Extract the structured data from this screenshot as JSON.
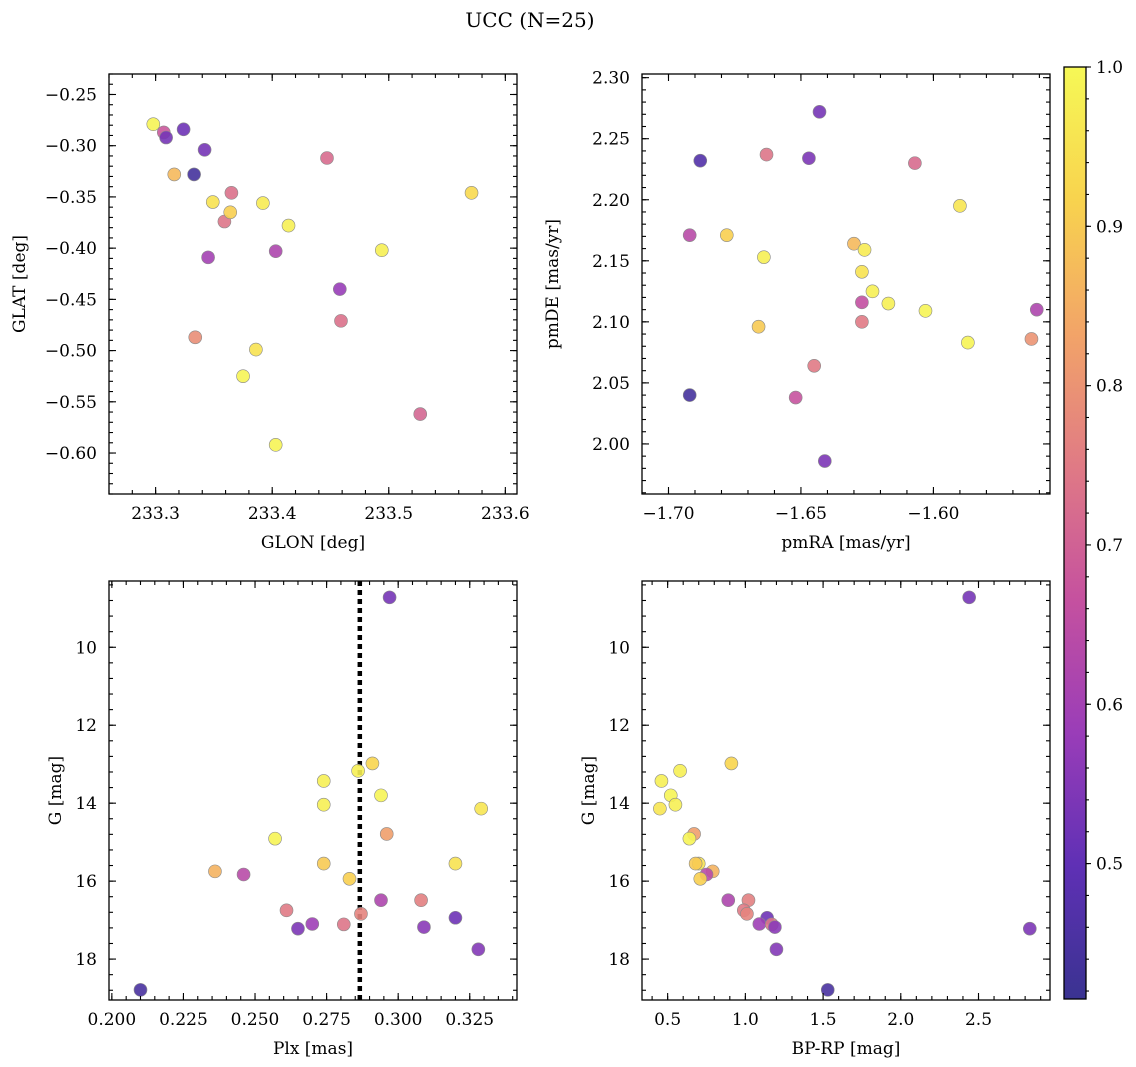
{
  "title": "UCC (N=25)",
  "colormap": {
    "name": "plasma",
    "stops": [
      "#3a3391",
      "#5f30b5",
      "#9a3db8",
      "#c5519f",
      "#e07a85",
      "#f2a468",
      "#f8d34e",
      "#f6f856"
    ],
    "vmin": 0.415,
    "vmax": 1.0,
    "ticks": [
      0.5,
      0.6,
      0.7,
      0.8,
      0.9,
      1.0
    ],
    "tick_labels": [
      "0.5",
      "0.6",
      "0.7",
      "0.8",
      "0.9",
      "1.0"
    ]
  },
  "chart_data": [
    {
      "type": "scatter",
      "xlabel": "GLON [deg]",
      "ylabel": "GLAT [deg]",
      "xlim": [
        233.26,
        233.61
      ],
      "ylim": [
        -0.64,
        -0.23
      ],
      "xticks": [
        233.3,
        233.4,
        233.5,
        233.6
      ],
      "xtick_labels": [
        "233.3",
        "233.4",
        "233.5",
        "233.6"
      ],
      "yticks": [
        -0.25,
        -0.3,
        -0.35,
        -0.4,
        -0.45,
        -0.5,
        -0.55,
        -0.6
      ],
      "ytick_labels": [
        "−0.25",
        "−0.30",
        "−0.35",
        "−0.40",
        "−0.45",
        "−0.50",
        "−0.55",
        "−0.60"
      ],
      "points": [
        {
          "x": 233.298,
          "y": -0.279,
          "c": 0.99
        },
        {
          "x": 233.307,
          "y": -0.287,
          "c": 0.68
        },
        {
          "x": 233.309,
          "y": -0.292,
          "c": 0.53
        },
        {
          "x": 233.324,
          "y": -0.284,
          "c": 0.52
        },
        {
          "x": 233.316,
          "y": -0.328,
          "c": 0.87
        },
        {
          "x": 233.333,
          "y": -0.328,
          "c": 0.44
        },
        {
          "x": 233.342,
          "y": -0.304,
          "c": 0.53
        },
        {
          "x": 233.349,
          "y": -0.355,
          "c": 0.95
        },
        {
          "x": 233.359,
          "y": -0.374,
          "c": 0.74
        },
        {
          "x": 233.365,
          "y": -0.346,
          "c": 0.73
        },
        {
          "x": 233.364,
          "y": -0.365,
          "c": 0.91
        },
        {
          "x": 233.392,
          "y": -0.356,
          "c": 0.97
        },
        {
          "x": 233.414,
          "y": -0.378,
          "c": 0.98
        },
        {
          "x": 233.345,
          "y": -0.409,
          "c": 0.6
        },
        {
          "x": 233.403,
          "y": -0.403,
          "c": 0.62
        },
        {
          "x": 233.447,
          "y": -0.312,
          "c": 0.72
        },
        {
          "x": 233.458,
          "y": -0.44,
          "c": 0.58
        },
        {
          "x": 233.459,
          "y": -0.471,
          "c": 0.73
        },
        {
          "x": 233.494,
          "y": -0.402,
          "c": 0.98
        },
        {
          "x": 233.571,
          "y": -0.346,
          "c": 0.93
        },
        {
          "x": 233.334,
          "y": -0.487,
          "c": 0.79
        },
        {
          "x": 233.386,
          "y": -0.499,
          "c": 0.95
        },
        {
          "x": 233.375,
          "y": -0.525,
          "c": 0.99
        },
        {
          "x": 233.527,
          "y": -0.562,
          "c": 0.71
        },
        {
          "x": 233.403,
          "y": -0.592,
          "c": 0.99
        }
      ]
    },
    {
      "type": "scatter",
      "xlabel": "pmRA [mas/yr]",
      "ylabel": "pmDE [mas/yr]",
      "xlim": [
        -1.71,
        -1.556
      ],
      "ylim": [
        1.959,
        2.303
      ],
      "xticks": [
        -1.7,
        -1.65,
        -1.6
      ],
      "xtick_labels": [
        "−1.70",
        "−1.65",
        "−1.60"
      ],
      "yticks": [
        2.0,
        2.05,
        2.1,
        2.15,
        2.2,
        2.25,
        2.3
      ],
      "ytick_labels": [
        "2.00",
        "2.05",
        "2.10",
        "2.15",
        "2.20",
        "2.25",
        "2.30"
      ],
      "points": [
        {
          "x": -1.643,
          "y": 2.272,
          "c": 0.53
        },
        {
          "x": -1.688,
          "y": 2.232,
          "c": 0.47
        },
        {
          "x": -1.663,
          "y": 2.237,
          "c": 0.74
        },
        {
          "x": -1.647,
          "y": 2.234,
          "c": 0.54
        },
        {
          "x": -1.607,
          "y": 2.23,
          "c": 0.72
        },
        {
          "x": -1.59,
          "y": 2.195,
          "c": 0.96
        },
        {
          "x": -1.692,
          "y": 2.171,
          "c": 0.64
        },
        {
          "x": -1.678,
          "y": 2.171,
          "c": 0.91
        },
        {
          "x": -1.664,
          "y": 2.153,
          "c": 0.98
        },
        {
          "x": -1.63,
          "y": 2.164,
          "c": 0.87
        },
        {
          "x": -1.626,
          "y": 2.159,
          "c": 0.97
        },
        {
          "x": -1.627,
          "y": 2.141,
          "c": 0.95
        },
        {
          "x": -1.623,
          "y": 2.125,
          "c": 0.98
        },
        {
          "x": -1.627,
          "y": 2.116,
          "c": 0.66
        },
        {
          "x": -1.617,
          "y": 2.115,
          "c": 0.98
        },
        {
          "x": -1.603,
          "y": 2.109,
          "c": 0.99
        },
        {
          "x": -1.561,
          "y": 2.11,
          "c": 0.62
        },
        {
          "x": -1.666,
          "y": 2.096,
          "c": 0.9
        },
        {
          "x": -1.627,
          "y": 2.1,
          "c": 0.75
        },
        {
          "x": -1.587,
          "y": 2.083,
          "c": 0.99
        },
        {
          "x": -1.563,
          "y": 2.086,
          "c": 0.8
        },
        {
          "x": -1.645,
          "y": 2.064,
          "c": 0.75
        },
        {
          "x": -1.692,
          "y": 2.04,
          "c": 0.44
        },
        {
          "x": -1.652,
          "y": 2.038,
          "c": 0.67
        },
        {
          "x": -1.641,
          "y": 1.986,
          "c": 0.54
        }
      ]
    },
    {
      "type": "scatter",
      "xlabel": "Plx [mas]",
      "ylabel": "G [mag]",
      "xlim": [
        0.199,
        0.3415
      ],
      "ylim": [
        19.05,
        8.3
      ],
      "y_inverted": true,
      "xticks": [
        0.2,
        0.225,
        0.25,
        0.275,
        0.3,
        0.325
      ],
      "xtick_labels": [
        "0.200",
        "0.225",
        "0.250",
        "0.275",
        "0.300",
        "0.325"
      ],
      "yticks": [
        10,
        12,
        14,
        16,
        18
      ],
      "ytick_labels": [
        "10",
        "12",
        "14",
        "16",
        "18"
      ],
      "vline": 0.2866,
      "points": [
        {
          "x": 0.297,
          "y": 8.72,
          "c": 0.53
        },
        {
          "x": 0.286,
          "y": 13.17,
          "c": 0.98
        },
        {
          "x": 0.291,
          "y": 12.98,
          "c": 0.92
        },
        {
          "x": 0.274,
          "y": 13.43,
          "c": 0.98
        },
        {
          "x": 0.294,
          "y": 13.8,
          "c": 0.99
        },
        {
          "x": 0.274,
          "y": 14.04,
          "c": 0.98
        },
        {
          "x": 0.329,
          "y": 14.14,
          "c": 0.96
        },
        {
          "x": 0.296,
          "y": 14.79,
          "c": 0.82
        },
        {
          "x": 0.257,
          "y": 14.91,
          "c": 0.99
        },
        {
          "x": 0.32,
          "y": 15.55,
          "c": 0.95
        },
        {
          "x": 0.274,
          "y": 15.55,
          "c": 0.9
        },
        {
          "x": 0.236,
          "y": 15.75,
          "c": 0.86
        },
        {
          "x": 0.246,
          "y": 15.83,
          "c": 0.64
        },
        {
          "x": 0.283,
          "y": 15.94,
          "c": 0.91
        },
        {
          "x": 0.294,
          "y": 16.49,
          "c": 0.62
        },
        {
          "x": 0.308,
          "y": 16.49,
          "c": 0.76
        },
        {
          "x": 0.261,
          "y": 16.75,
          "c": 0.75
        },
        {
          "x": 0.287,
          "y": 16.84,
          "c": 0.77
        },
        {
          "x": 0.32,
          "y": 16.94,
          "c": 0.52
        },
        {
          "x": 0.27,
          "y": 17.1,
          "c": 0.59
        },
        {
          "x": 0.281,
          "y": 17.11,
          "c": 0.74
        },
        {
          "x": 0.309,
          "y": 17.18,
          "c": 0.56
        },
        {
          "x": 0.265,
          "y": 17.22,
          "c": 0.54
        },
        {
          "x": 0.328,
          "y": 17.75,
          "c": 0.55
        },
        {
          "x": 0.21,
          "y": 18.79,
          "c": 0.45
        }
      ]
    },
    {
      "type": "scatter",
      "xlabel": "BP-RP [mag]",
      "ylabel": "G [mag]",
      "xlim": [
        0.335,
        2.96
      ],
      "ylim": [
        19.05,
        8.3
      ],
      "y_inverted": true,
      "xticks": [
        0.5,
        1.0,
        1.5,
        2.0,
        2.5
      ],
      "xtick_labels": [
        "0.5",
        "1.0",
        "1.5",
        "2.0",
        "2.5"
      ],
      "yticks": [
        10,
        12,
        14,
        16,
        18
      ],
      "ytick_labels": [
        "10",
        "12",
        "14",
        "16",
        "18"
      ],
      "points": [
        {
          "x": 2.44,
          "y": 8.72,
          "c": 0.53
        },
        {
          "x": 0.58,
          "y": 13.17,
          "c": 0.98
        },
        {
          "x": 0.91,
          "y": 12.98,
          "c": 0.92
        },
        {
          "x": 0.46,
          "y": 13.43,
          "c": 0.98
        },
        {
          "x": 0.52,
          "y": 13.8,
          "c": 0.99
        },
        {
          "x": 0.55,
          "y": 14.04,
          "c": 0.98
        },
        {
          "x": 0.45,
          "y": 14.14,
          "c": 0.96
        },
        {
          "x": 0.67,
          "y": 14.79,
          "c": 0.82
        },
        {
          "x": 0.64,
          "y": 14.91,
          "c": 0.99
        },
        {
          "x": 0.7,
          "y": 15.55,
          "c": 0.95
        },
        {
          "x": 0.68,
          "y": 15.55,
          "c": 0.9
        },
        {
          "x": 0.79,
          "y": 15.75,
          "c": 0.86
        },
        {
          "x": 0.75,
          "y": 15.83,
          "c": 0.64
        },
        {
          "x": 0.71,
          "y": 15.94,
          "c": 0.91
        },
        {
          "x": 0.89,
          "y": 16.49,
          "c": 0.62
        },
        {
          "x": 1.02,
          "y": 16.49,
          "c": 0.76
        },
        {
          "x": 0.99,
          "y": 16.75,
          "c": 0.75
        },
        {
          "x": 1.01,
          "y": 16.84,
          "c": 0.77
        },
        {
          "x": 1.14,
          "y": 16.94,
          "c": 0.52
        },
        {
          "x": 1.09,
          "y": 17.1,
          "c": 0.59
        },
        {
          "x": 1.17,
          "y": 17.11,
          "c": 0.74
        },
        {
          "x": 1.19,
          "y": 17.18,
          "c": 0.56
        },
        {
          "x": 2.83,
          "y": 17.22,
          "c": 0.54
        },
        {
          "x": 1.2,
          "y": 17.75,
          "c": 0.55
        },
        {
          "x": 1.53,
          "y": 18.79,
          "c": 0.45
        }
      ]
    }
  ]
}
